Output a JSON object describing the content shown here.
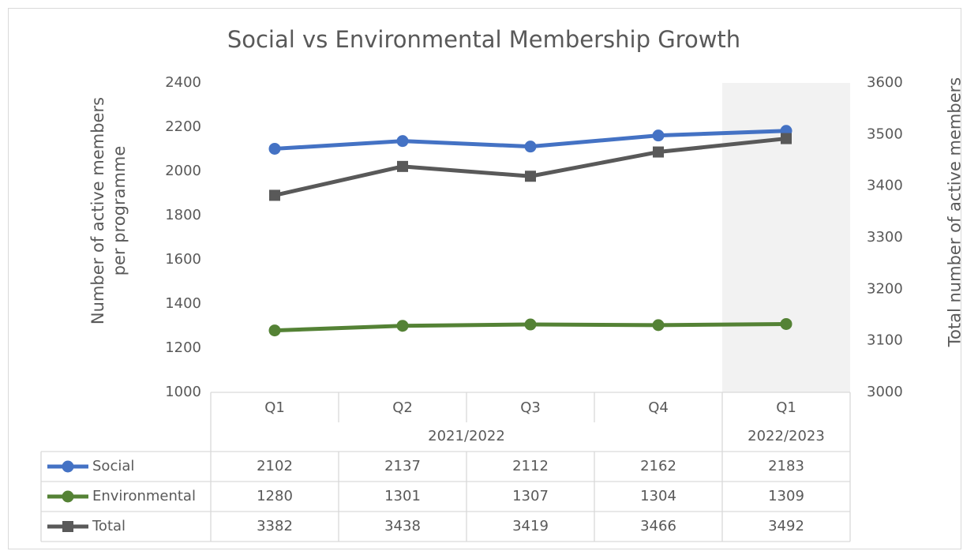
{
  "chart_data": {
    "type": "line",
    "title": "Social vs Environmental Membership Growth",
    "y_label": "Number of active members per programme",
    "y2_label": "Total number of active members",
    "categories": [
      "Q1",
      "Q2",
      "Q3",
      "Q4",
      "Q1"
    ],
    "category_groups": [
      "2021/2022",
      "2021/2022",
      "2021/2022",
      "2021/2022",
      "2022/2023"
    ],
    "series": [
      {
        "name": "Social",
        "color": "#4472c4",
        "marker": "circle",
        "values": [
          2102,
          2137,
          2112,
          2162,
          2183
        ]
      },
      {
        "name": "Environmental",
        "color": "#548235",
        "marker": "circle",
        "values": [
          1280,
          1301,
          1307,
          1304,
          1309
        ]
      },
      {
        "name": "Total",
        "color": "#595959",
        "marker": "square",
        "axis": "y2",
        "values": [
          3382,
          3438,
          3419,
          3466,
          3492
        ]
      }
    ],
    "ylim": [
      1000,
      2400
    ],
    "yticks": [
      1000,
      1200,
      1400,
      1600,
      1800,
      2000,
      2200,
      2400
    ],
    "y2lim": [
      3000,
      3600
    ],
    "y2ticks": [
      3000,
      3100,
      3200,
      3300,
      3400,
      3500,
      3600
    ],
    "highlight": {
      "category": 4,
      "color": "#f2f2f2"
    },
    "data_table": true
  }
}
